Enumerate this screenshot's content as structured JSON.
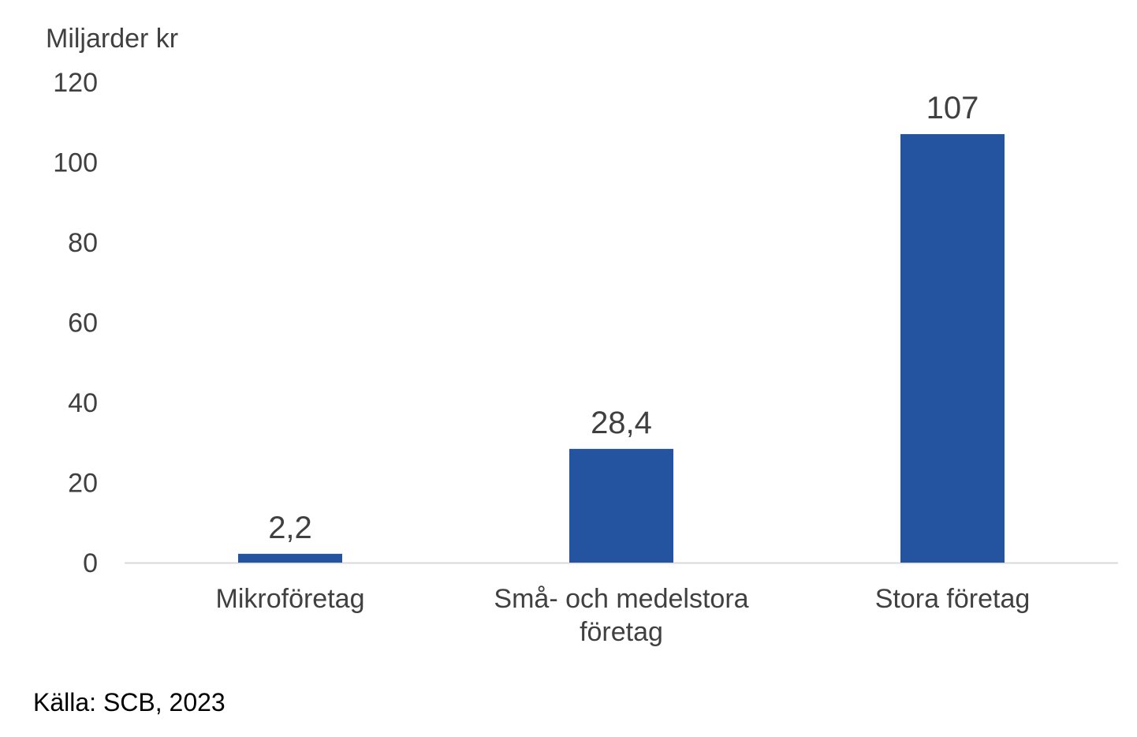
{
  "chart_data": {
    "type": "bar",
    "ylabel": "Miljarder kr",
    "categories": [
      [
        "Mikroföretag"
      ],
      [
        "Små- och medelstora",
        "företag"
      ],
      [
        "Stora företag"
      ]
    ],
    "values": [
      2.2,
      28.4,
      107
    ],
    "data_labels": [
      "2,2",
      "28,4",
      "107"
    ],
    "ylim": [
      0,
      120
    ],
    "yticks": [
      0,
      20,
      40,
      60,
      80,
      100,
      120
    ],
    "grid": false,
    "legend": "none",
    "bar_color": "#2453a0"
  },
  "source": "Källa: SCB, 2023"
}
